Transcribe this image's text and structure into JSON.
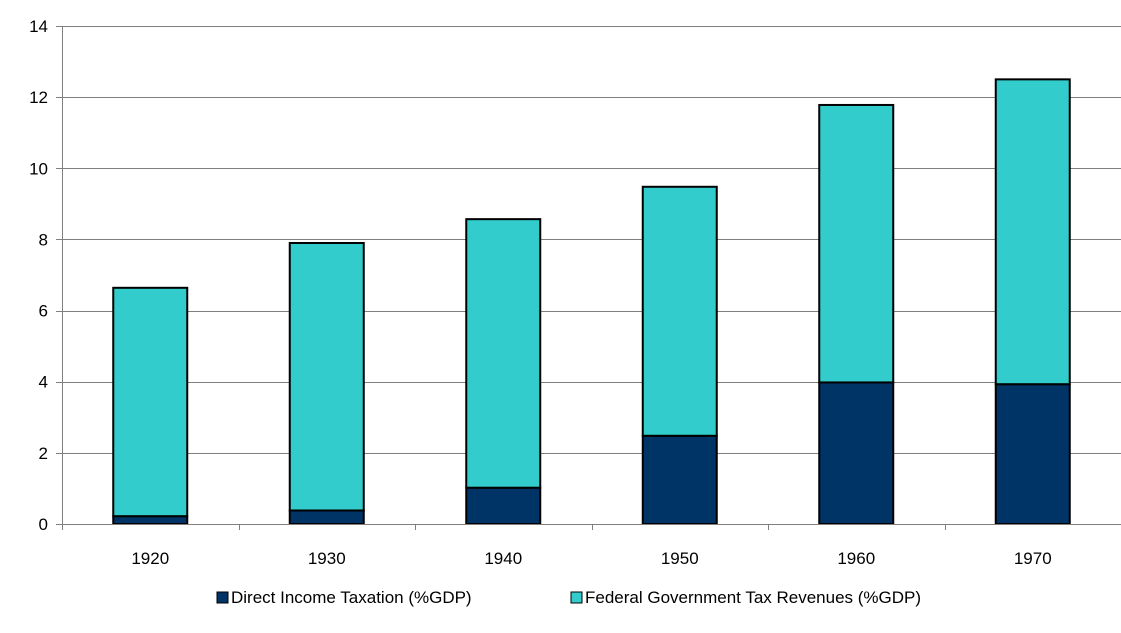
{
  "chart_data": {
    "type": "bar",
    "stacked": true,
    "title": "",
    "xlabel": "",
    "ylabel": "",
    "categories": [
      "1920",
      "1930",
      "1940",
      "1950",
      "1960",
      "1970"
    ],
    "ylim": [
      0,
      14
    ],
    "yticks": [
      "0",
      "2",
      "4",
      "6",
      "8",
      "10",
      "12",
      "14"
    ],
    "grid": true,
    "legend_position": "bottom",
    "series": [
      {
        "name": "Direct Income Taxation (%GDP)",
        "color": "#003366",
        "values": [
          0.22,
          0.38,
          1.02,
          2.48,
          3.98,
          3.93
        ]
      },
      {
        "name": "Federal Government Tax Revenues (%GDP)",
        "color": "#33CCCC",
        "values": [
          6.42,
          7.52,
          7.55,
          7.0,
          7.8,
          8.57
        ]
      }
    ]
  }
}
